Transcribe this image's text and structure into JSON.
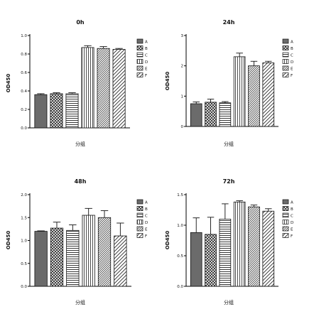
{
  "chart_data": [
    {
      "type": "bar",
      "title": "0h",
      "ylabel": "OD450",
      "xlabel": "分组",
      "ylim": [
        0,
        1.0
      ],
      "yticks": [
        0,
        0.2,
        0.4,
        0.6,
        0.8,
        1.0
      ],
      "ytick_labels": [
        "0.0",
        "0.2",
        "0.4",
        "0.6",
        "0.8",
        "1.0"
      ],
      "categories": [
        "A",
        "B",
        "C",
        "D",
        "E",
        "F"
      ],
      "values": [
        0.36,
        0.37,
        0.37,
        0.87,
        0.86,
        0.85
      ],
      "errors": [
        0.01,
        0.01,
        0.01,
        0.02,
        0.02,
        0.01
      ],
      "grid": false,
      "legend": "right"
    },
    {
      "type": "bar",
      "title": "24h",
      "ylabel": "OD450",
      "xlabel": "分组",
      "ylim": [
        0,
        3
      ],
      "yticks": [
        0,
        1,
        2,
        3
      ],
      "ytick_labels": [
        "0",
        "1",
        "2",
        "3"
      ],
      "categories": [
        "A",
        "B",
        "C",
        "D",
        "E",
        "F"
      ],
      "values": [
        0.75,
        0.8,
        0.78,
        2.3,
        2.0,
        2.1
      ],
      "errors": [
        0.06,
        0.1,
        0.04,
        0.12,
        0.15,
        0.05
      ],
      "grid": false,
      "legend": "right"
    },
    {
      "type": "bar",
      "title": "48h",
      "ylabel": "OD450",
      "xlabel": "分组",
      "ylim": [
        0,
        2.0
      ],
      "yticks": [
        0,
        0.5,
        1.0,
        1.5,
        2.0
      ],
      "ytick_labels": [
        "0.0",
        "0.5",
        "1.0",
        "1.5",
        "2.0"
      ],
      "categories": [
        "A",
        "B",
        "C",
        "D",
        "E",
        "F"
      ],
      "values": [
        1.2,
        1.27,
        1.22,
        1.55,
        1.5,
        1.1
      ],
      "errors": [
        0.01,
        0.13,
        0.12,
        0.15,
        0.15,
        0.28
      ],
      "grid": false,
      "legend": "right"
    },
    {
      "type": "bar",
      "title": "72h",
      "ylabel": "OD450",
      "xlabel": "分组",
      "ylim": [
        0,
        1.5
      ],
      "yticks": [
        0,
        0.5,
        1.0,
        1.5
      ],
      "ytick_labels": [
        "0.0",
        "0.5",
        "1.0",
        "1.5"
      ],
      "categories": [
        "A",
        "B",
        "C",
        "D",
        "E",
        "F"
      ],
      "values": [
        0.88,
        0.85,
        1.1,
        1.38,
        1.3,
        1.23
      ],
      "errors": [
        0.24,
        0.28,
        0.25,
        0.02,
        0.03,
        0.04
      ],
      "grid": false,
      "legend": "right"
    }
  ]
}
